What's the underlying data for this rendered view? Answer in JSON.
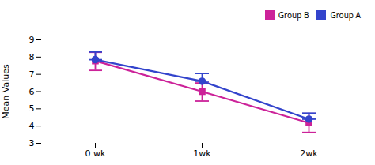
{
  "chart_data": {
    "type": "line",
    "categories": [
      "0 wk",
      "1wk",
      "2wk"
    ],
    "series": [
      {
        "name": "Group B",
        "color": "#cc2299",
        "marker": "square",
        "values": [
          7.78,
          6.0,
          4.18
        ],
        "error_lower": [
          0.55,
          0.55,
          0.55
        ],
        "error_upper": [
          0.5,
          0.5,
          0.55
        ]
      },
      {
        "name": "Group A",
        "color": "#3344cc",
        "marker": "circle",
        "values": [
          7.85,
          6.6,
          4.4
        ],
        "error_lower": [
          0.0,
          0.0,
          0.0
        ],
        "error_upper": [
          0.45,
          0.45,
          0.35
        ]
      }
    ],
    "ylabel": "Mean Values",
    "ylim": [
      3,
      9
    ],
    "yticks": [
      3,
      4,
      5,
      6,
      7,
      8,
      9
    ],
    "grid": false,
    "legend": "upper right"
  }
}
